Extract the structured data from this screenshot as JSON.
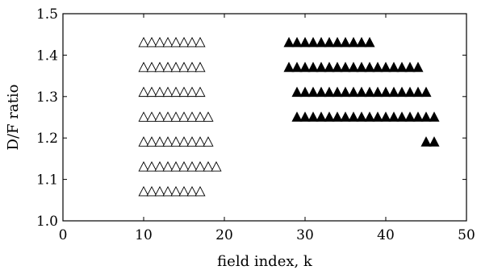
{
  "chart_data": {
    "type": "scatter",
    "title": "",
    "xlabel": "field index,  k",
    "ylabel": "D/F ratio",
    "xlim": [
      0,
      50
    ],
    "ylim": [
      1.0,
      1.5
    ],
    "xticks": [
      0,
      10,
      20,
      30,
      40,
      50
    ],
    "xtick_labels": [
      "0",
      "10",
      "20",
      "30",
      "40",
      "50"
    ],
    "yticks": [
      1.0,
      1.1,
      1.2,
      1.3,
      1.4,
      1.5
    ],
    "ytick_labels": [
      "1.0",
      "1.1",
      "1.2",
      "1.3",
      "1.4",
      "1.5"
    ],
    "grid": false,
    "series": [
      {
        "marker": "triangle-open",
        "color": "#000000",
        "rows": [
          {
            "y": 1.43,
            "x_start": 10,
            "x_end": 17
          },
          {
            "y": 1.37,
            "x_start": 10,
            "x_end": 17
          },
          {
            "y": 1.31,
            "x_start": 10,
            "x_end": 17
          },
          {
            "y": 1.25,
            "x_start": 10,
            "x_end": 18
          },
          {
            "y": 1.19,
            "x_start": 10,
            "x_end": 18
          },
          {
            "y": 1.13,
            "x_start": 10,
            "x_end": 19
          },
          {
            "y": 1.07,
            "x_start": 10,
            "x_end": 17
          }
        ]
      },
      {
        "marker": "triangle-filled",
        "color": "#000000",
        "rows": [
          {
            "y": 1.43,
            "x_start": 28,
            "x_end": 38
          },
          {
            "y": 1.37,
            "x_start": 28,
            "x_end": 44
          },
          {
            "y": 1.31,
            "x_start": 29,
            "x_end": 45
          },
          {
            "y": 1.25,
            "x_start": 29,
            "x_end": 46
          },
          {
            "y": 1.19,
            "x_start": 45,
            "x_end": 46
          }
        ]
      }
    ]
  }
}
